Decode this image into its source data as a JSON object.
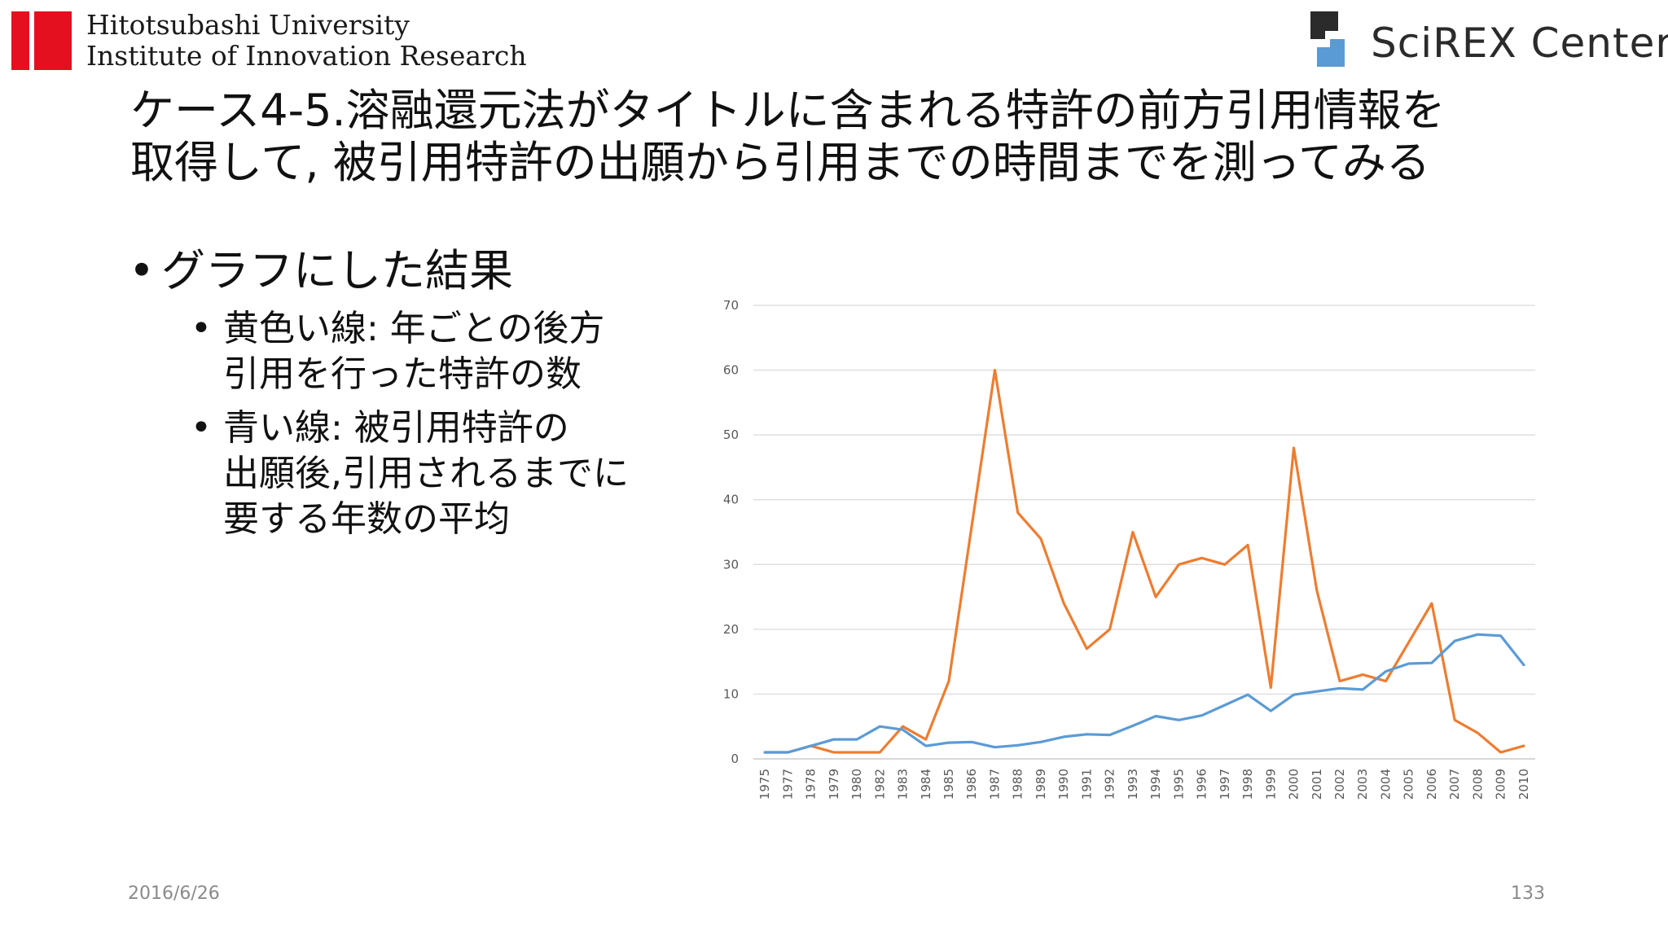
{
  "header": {
    "univ_line1": "Hitotsubashi University",
    "univ_line2": "Institute of Innovation Research",
    "partner_name": "SciREX Center",
    "brand_red": "#e4101f",
    "partner_blue": "#5b9bd5",
    "partner_dark": "#2b2b2b"
  },
  "slide": {
    "title_line1": "ケース4-5.溶融還元法がタイトルに含まれる特許の前方引用情報を",
    "title_line2": "取得して, 被引用特許の出願から引用までの時間までを測ってみる",
    "bullet_main": "グラフにした結果",
    "sub1_line1": "黄色い線: 年ごとの後方",
    "sub1_line2": "引用を行った特許の数",
    "sub2_line1": "青い線: 被引用特許の",
    "sub2_line2": "出願後,引用されるまでに",
    "sub2_line3": "要する年数の平均",
    "date": "2016/6/26",
    "page_number": "133"
  },
  "chart_data": {
    "type": "line",
    "title": "",
    "xlabel": "",
    "ylabel": "",
    "ylim": [
      0,
      70
    ],
    "yticks": [
      0,
      10,
      20,
      30,
      40,
      50,
      60,
      70
    ],
    "grid": true,
    "legend": "none",
    "categories": [
      "1975",
      "1977",
      "1978",
      "1979",
      "1980",
      "1982",
      "1983",
      "1984",
      "1985",
      "1986",
      "1987",
      "1988",
      "1989",
      "1990",
      "1991",
      "1992",
      "1993",
      "1994",
      "1995",
      "1996",
      "1997",
      "1998",
      "1999",
      "2000",
      "2001",
      "2002",
      "2003",
      "2004",
      "2005",
      "2006",
      "2007",
      "2008",
      "2009",
      "2010"
    ],
    "series": [
      {
        "color": "#ed7d31",
        "values": [
          1,
          1,
          2,
          1,
          1,
          1,
          5,
          3,
          12,
          36,
          60,
          38,
          34,
          24,
          17,
          20,
          35,
          25,
          30,
          31,
          30,
          33,
          11,
          48,
          26,
          12,
          13,
          12,
          18,
          24,
          6,
          4,
          1,
          2
        ]
      },
      {
        "color": "#5b9bd5",
        "values": [
          1,
          1,
          2,
          3,
          3,
          5,
          4.5,
          2,
          2.5,
          2.6,
          1.8,
          2.1,
          2.6,
          3.4,
          3.8,
          3.7,
          5.1,
          6.6,
          6,
          6.7,
          8.3,
          9.9,
          7.4,
          9.9,
          10.4,
          10.9,
          10.7,
          13.5,
          14.7,
          14.8,
          18.2,
          19.2,
          19,
          14.5
        ]
      }
    ]
  }
}
